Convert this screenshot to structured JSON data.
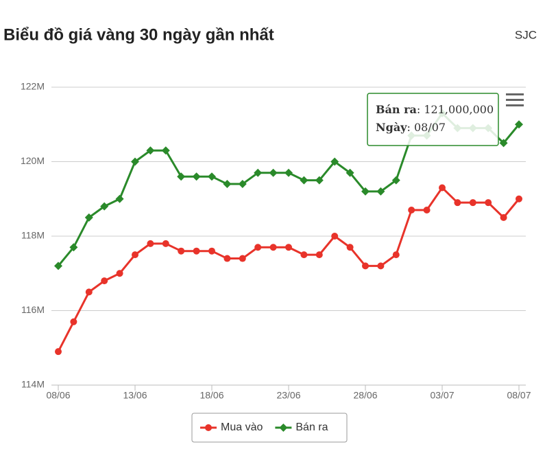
{
  "chart_data": {
    "type": "line",
    "title": "Biểu đồ giá vàng 30 ngày gần nhất",
    "subtitle": "SJC",
    "categories": [
      "08/06",
      null,
      null,
      null,
      null,
      "13/06",
      null,
      null,
      null,
      null,
      "18/06",
      null,
      null,
      null,
      null,
      "23/06",
      null,
      null,
      null,
      null,
      "28/06",
      null,
      null,
      null,
      null,
      "03/07",
      null,
      null,
      null,
      null,
      "08/07"
    ],
    "series": [
      {
        "name": "Mua vào",
        "color": "#e8332a",
        "marker": "circle",
        "values": [
          114900000,
          115700000,
          116500000,
          116800000,
          117000000,
          117500000,
          117800000,
          117800000,
          117600000,
          117600000,
          117600000,
          117400000,
          117400000,
          117700000,
          117700000,
          117700000,
          117500000,
          117500000,
          118000000,
          117700000,
          117200000,
          117200000,
          117500000,
          118700000,
          118700000,
          119300000,
          118900000,
          118900000,
          118900000,
          118500000,
          119000000
        ]
      },
      {
        "name": "Bán ra",
        "color": "#2a8a2a",
        "marker": "diamond",
        "values": [
          117200000,
          117700000,
          118500000,
          118800000,
          119000000,
          120000000,
          120300000,
          120300000,
          119600000,
          119600000,
          119600000,
          119400000,
          119400000,
          119700000,
          119700000,
          119700000,
          119500000,
          119500000,
          120000000,
          119700000,
          119200000,
          119200000,
          119500000,
          120700000,
          120700000,
          121300000,
          120900000,
          120900000,
          120900000,
          120500000,
          121000000
        ]
      }
    ],
    "ylim": [
      114000000,
      122000000
    ],
    "yticks": [
      {
        "value": 114000000,
        "label": "114M"
      },
      {
        "value": 116000000,
        "label": "116M"
      },
      {
        "value": 118000000,
        "label": "118M"
      },
      {
        "value": 120000000,
        "label": "120M"
      },
      {
        "value": 122000000,
        "label": "122M"
      }
    ],
    "grid": true,
    "legend": "bottom",
    "tooltip": {
      "series": 1,
      "index": 30,
      "value_label": "121,000,000",
      "date_label": "Ngày",
      "date": "08/07"
    }
  }
}
